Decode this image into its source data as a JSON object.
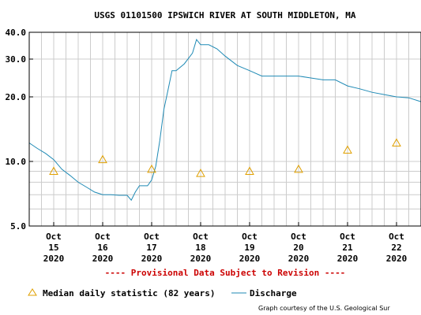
{
  "chart_data": {
    "type": "line",
    "title": "USGS 01101500 IPSWICH RIVER AT SOUTH MIDDLETON, MA",
    "xlabel": "",
    "ylabel": "",
    "y_scale": "log",
    "ylim": [
      5.0,
      40.0
    ],
    "y_ticks": [
      {
        "value": 5.0,
        "label": "5.0"
      },
      {
        "value": 6,
        "label": ""
      },
      {
        "value": 7,
        "label": ""
      },
      {
        "value": 8,
        "label": ""
      },
      {
        "value": 9,
        "label": ""
      },
      {
        "value": 10.0,
        "label": "10.0"
      },
      {
        "value": 20.0,
        "label": "20.0"
      },
      {
        "value": 30.0,
        "label": "30.0"
      },
      {
        "value": 40.0,
        "label": "40.0"
      }
    ],
    "xlim": [
      "2020-10-14T12:00",
      "2020-10-22T12:00"
    ],
    "x_ticks": [
      {
        "date": "2020-10-15",
        "label": [
          "Oct",
          "15",
          "2020"
        ]
      },
      {
        "date": "2020-10-16",
        "label": [
          "Oct",
          "16",
          "2020"
        ]
      },
      {
        "date": "2020-10-17",
        "label": [
          "Oct",
          "17",
          "2020"
        ]
      },
      {
        "date": "2020-10-18",
        "label": [
          "Oct",
          "18",
          "2020"
        ]
      },
      {
        "date": "2020-10-19",
        "label": [
          "Oct",
          "19",
          "2020"
        ]
      },
      {
        "date": "2020-10-20",
        "label": [
          "Oct",
          "20",
          "2020"
        ]
      },
      {
        "date": "2020-10-21",
        "label": [
          "Oct",
          "21",
          "2020"
        ]
      },
      {
        "date": "2020-10-22",
        "label": [
          "Oct",
          "22",
          "2020"
        ]
      }
    ],
    "grid": true,
    "notice": "---- Provisional Data Subject to Revision ----",
    "credit": "Graph courtesy of the U.S. Geological Sur",
    "colors": {
      "discharge": "#1f8ab5",
      "median": "#e0a000",
      "notice": "#cc0000",
      "grid": "#cccccc"
    },
    "series": [
      {
        "name": "Discharge",
        "style": "line",
        "points": [
          [
            "2020-10-14T12:00",
            12.2
          ],
          [
            "2020-10-14T16:00",
            11.5
          ],
          [
            "2020-10-14T20:00",
            10.9
          ],
          [
            "2020-10-15T00:00",
            10.2
          ],
          [
            "2020-10-15T04:00",
            9.2
          ],
          [
            "2020-10-15T08:00",
            8.6
          ],
          [
            "2020-10-15T12:00",
            8.0
          ],
          [
            "2020-10-15T16:00",
            7.6
          ],
          [
            "2020-10-15T20:00",
            7.2
          ],
          [
            "2020-10-16T00:00",
            7.0
          ],
          [
            "2020-10-16T04:00",
            7.0
          ],
          [
            "2020-10-16T08:00",
            6.95
          ],
          [
            "2020-10-16T12:00",
            6.95
          ],
          [
            "2020-10-16T14:00",
            6.6
          ],
          [
            "2020-10-16T16:00",
            7.2
          ],
          [
            "2020-10-16T18:00",
            7.7
          ],
          [
            "2020-10-16T22:00",
            7.7
          ],
          [
            "2020-10-17T00:00",
            8.2
          ],
          [
            "2020-10-17T02:00",
            9.5
          ],
          [
            "2020-10-17T04:00",
            12.5
          ],
          [
            "2020-10-17T06:00",
            17.5
          ],
          [
            "2020-10-17T08:00",
            21.5
          ],
          [
            "2020-10-17T10:00",
            26.5
          ],
          [
            "2020-10-17T12:00",
            26.5
          ],
          [
            "2020-10-17T16:00",
            28.5
          ],
          [
            "2020-10-17T20:00",
            32.0
          ],
          [
            "2020-10-17T22:00",
            37.0
          ],
          [
            "2020-10-18T00:00",
            35.0
          ],
          [
            "2020-10-18T04:00",
            35.0
          ],
          [
            "2020-10-18T08:00",
            33.5
          ],
          [
            "2020-10-18T12:00",
            31.0
          ],
          [
            "2020-10-18T18:00",
            28.0
          ],
          [
            "2020-10-19T00:00",
            26.5
          ],
          [
            "2020-10-19T06:00",
            25.0
          ],
          [
            "2020-10-19T12:00",
            25.0
          ],
          [
            "2020-10-19T18:00",
            25.0
          ],
          [
            "2020-10-20T00:00",
            25.0
          ],
          [
            "2020-10-20T06:00",
            24.5
          ],
          [
            "2020-10-20T12:00",
            24.0
          ],
          [
            "2020-10-20T18:00",
            24.0
          ],
          [
            "2020-10-21T00:00",
            22.5
          ],
          [
            "2020-10-21T06:00",
            21.8
          ],
          [
            "2020-10-21T12:00",
            21.0
          ],
          [
            "2020-10-21T18:00",
            20.5
          ],
          [
            "2020-10-22T00:00",
            20.0
          ],
          [
            "2020-10-22T06:00",
            19.8
          ],
          [
            "2020-10-22T12:00",
            19.0
          ]
        ]
      },
      {
        "name": "Median daily statistic (82 years)",
        "style": "marker-triangle",
        "points": [
          [
            "2020-10-15T00:00",
            9.0
          ],
          [
            "2020-10-16T00:00",
            10.2
          ],
          [
            "2020-10-17T00:00",
            9.2
          ],
          [
            "2020-10-18T00:00",
            8.8
          ],
          [
            "2020-10-19T00:00",
            9.0
          ],
          [
            "2020-10-20T00:00",
            9.2
          ],
          [
            "2020-10-21T00:00",
            11.3
          ],
          [
            "2020-10-22T00:00",
            12.2
          ]
        ]
      }
    ]
  }
}
